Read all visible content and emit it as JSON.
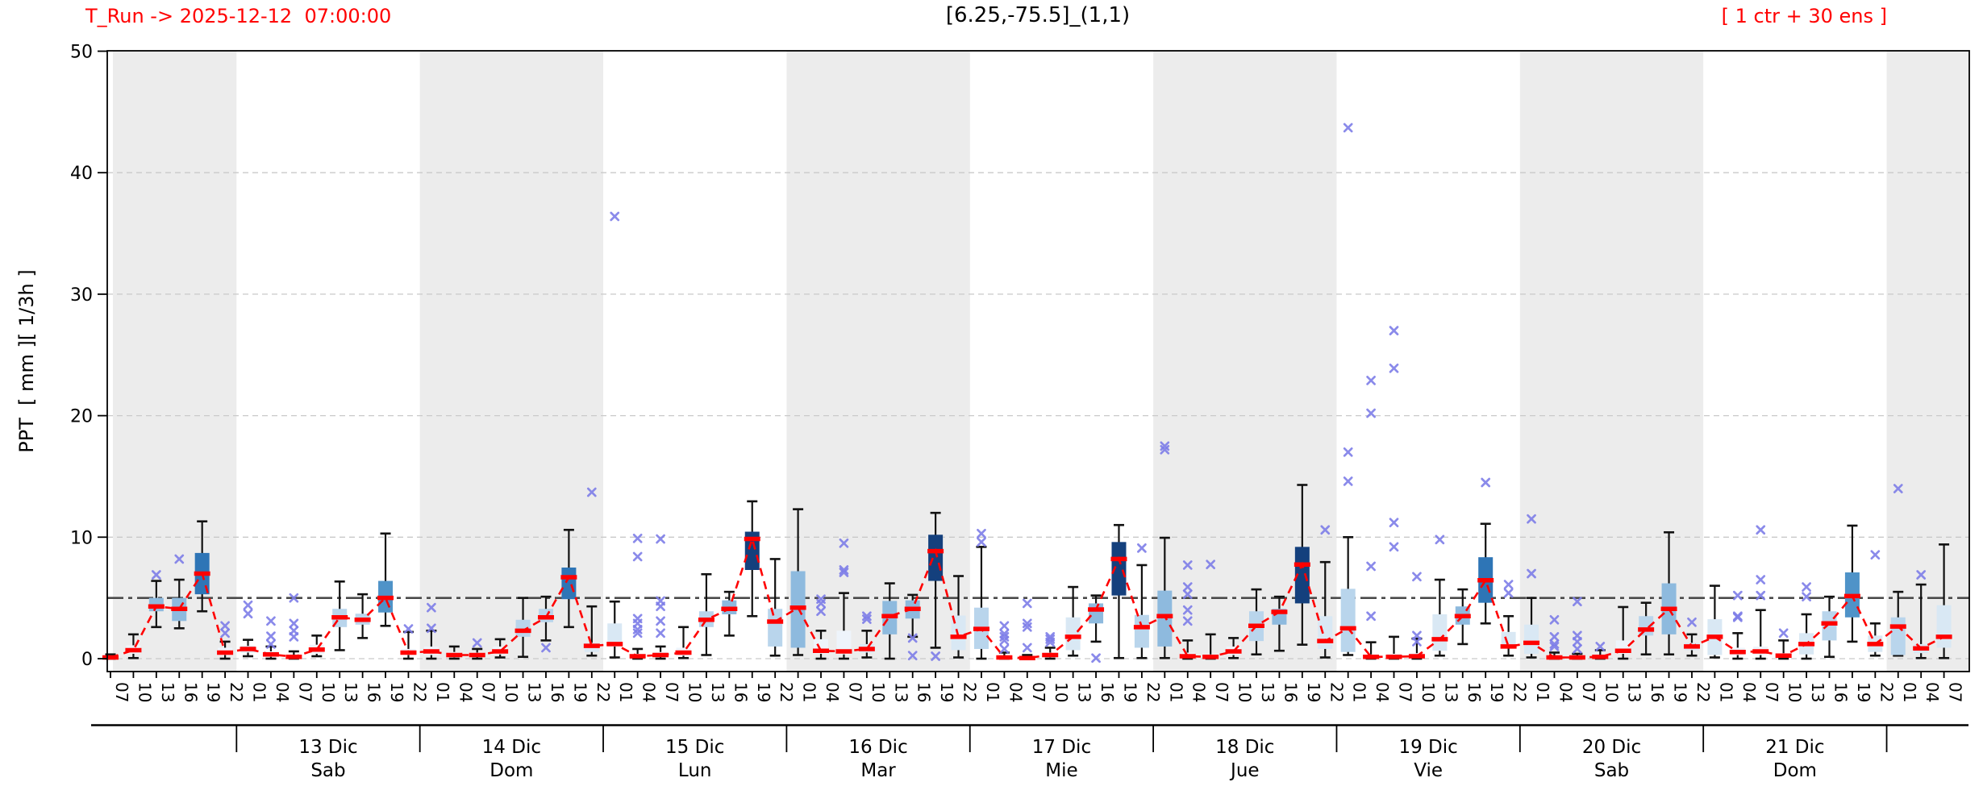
{
  "header": {
    "t_run_label": "T_Run -> 2025-12-12  07:00:00",
    "title": "[6.25,-75.5]_(1,1)",
    "ens_label": "[ 1 ctr + 30 ens ]"
  },
  "chart_data": {
    "type": "boxplot-timeseries",
    "title": "[6.25,-75.5]_(1,1)",
    "t_run_label": "T_Run -> 2025-12-12  07:00:00",
    "ens_label": "[ 1 ctr + 30 ens ]",
    "ylabel": "PPT  [ mm ][ 1/3h ]",
    "ylim": [
      -1.05,
      50.0
    ],
    "yticks": [
      "0",
      "10",
      "20",
      "30",
      "40",
      "50"
    ],
    "grid": "dashed-horizontal",
    "threshold_value": 5,
    "colors": {
      "median_red": "#ff0000",
      "outlier": "#7d7de8",
      "band_gray": "#ececec",
      "grid_gray": "#c9c9c9",
      "threshold_gray": "#4a4a4a",
      "whisker_black": "#111111"
    },
    "box_fill_scale": [
      {
        "min": 7.5,
        "fill": "#14407d"
      },
      {
        "min": 6.0,
        "fill": "#2e75b6"
      },
      {
        "min": 4.8,
        "fill": "#4f93c8"
      },
      {
        "min": 3.5,
        "fill": "#8ebade"
      },
      {
        "min": 2.0,
        "fill": "#b9d5ec"
      },
      {
        "min": 0.8,
        "fill": "#d9e8f4"
      },
      {
        "min": 0.0,
        "fill": "#eef4fb"
      }
    ],
    "days": [
      {
        "label": "13 Dic",
        "sub": "Sab"
      },
      {
        "label": "14 Dic",
        "sub": "Dom"
      },
      {
        "label": "15 Dic",
        "sub": "Lun"
      },
      {
        "label": "16 Dic",
        "sub": "Mar"
      },
      {
        "label": "17 Dic",
        "sub": "Mie"
      },
      {
        "label": "18 Dic",
        "sub": "Jue"
      },
      {
        "label": "19 Dic",
        "sub": "Vie"
      },
      {
        "label": "20 Dic",
        "sub": "Sab"
      },
      {
        "label": "21 Dic",
        "sub": "Dom"
      }
    ],
    "slots": [
      {
        "t": "07",
        "m": 0.1,
        "q1": 0.02,
        "q3": 0.25,
        "lo": 0,
        "hi": 0.35,
        "o": []
      },
      {
        "t": "10",
        "m": 0.7,
        "q1": 0.4,
        "q3": 1.1,
        "lo": 0.05,
        "hi": 2.0,
        "o": []
      },
      {
        "t": "13",
        "m": 4.3,
        "q1": 3.9,
        "q3": 5.0,
        "lo": 2.6,
        "hi": 6.4,
        "o": [
          6.9
        ]
      },
      {
        "t": "16",
        "m": 4.1,
        "q1": 3.1,
        "q3": 5.0,
        "lo": 2.5,
        "hi": 6.5,
        "o": [
          8.2
        ]
      },
      {
        "t": "19",
        "m": 7.0,
        "q1": 5.3,
        "q3": 8.7,
        "lo": 3.9,
        "hi": 11.3,
        "o": []
      },
      {
        "t": "22",
        "m": 0.5,
        "q1": 0.3,
        "q3": 0.9,
        "lo": 0,
        "hi": 1.4,
        "o": [
          2.7,
          2.1
        ]
      },
      {
        "t": "01",
        "m": 0.8,
        "q1": 0.5,
        "q3": 1.05,
        "lo": 0.2,
        "hi": 1.55,
        "o": [
          4.4,
          3.7
        ]
      },
      {
        "t": "04",
        "m": 0.35,
        "q1": 0.15,
        "q3": 0.6,
        "lo": 0,
        "hi": 1.0,
        "o": [
          3.1,
          1.85,
          1.2
        ]
      },
      {
        "t": "07",
        "m": 0.15,
        "q1": 0.05,
        "q3": 0.3,
        "lo": 0,
        "hi": 0.6,
        "o": [
          5.0,
          2.9,
          2.3,
          1.8
        ]
      },
      {
        "t": "10",
        "m": 0.75,
        "q1": 0.4,
        "q3": 1.15,
        "lo": 0.2,
        "hi": 1.9,
        "o": []
      },
      {
        "t": "13",
        "m": 3.4,
        "q1": 2.6,
        "q3": 4.1,
        "lo": 0.7,
        "hi": 6.35,
        "o": []
      },
      {
        "t": "16",
        "m": 3.2,
        "q1": 2.8,
        "q3": 3.7,
        "lo": 1.7,
        "hi": 5.3,
        "o": []
      },
      {
        "t": "19",
        "m": 5.0,
        "q1": 3.8,
        "q3": 6.4,
        "lo": 2.7,
        "hi": 10.3,
        "o": []
      },
      {
        "t": "22",
        "m": 0.5,
        "q1": 0.3,
        "q3": 0.8,
        "lo": 0,
        "hi": 2.2,
        "o": [
          2.45
        ]
      },
      {
        "t": "01",
        "m": 0.6,
        "q1": 0.3,
        "q3": 1.0,
        "lo": 0,
        "hi": 2.3,
        "o": [
          4.2,
          2.5
        ]
      },
      {
        "t": "04",
        "m": 0.3,
        "q1": 0.1,
        "q3": 0.55,
        "lo": 0,
        "hi": 1.0,
        "o": []
      },
      {
        "t": "07",
        "m": 0.3,
        "q1": 0.15,
        "q3": 0.5,
        "lo": 0,
        "hi": 0.8,
        "o": [
          1.3
        ]
      },
      {
        "t": "10",
        "m": 0.6,
        "q1": 0.35,
        "q3": 1.0,
        "lo": 0.1,
        "hi": 1.6,
        "o": []
      },
      {
        "t": "13",
        "m": 2.3,
        "q1": 1.8,
        "q3": 3.2,
        "lo": 0.15,
        "hi": 5.0,
        "o": []
      },
      {
        "t": "16",
        "m": 3.4,
        "q1": 3.0,
        "q3": 4.1,
        "lo": 1.5,
        "hi": 5.1,
        "o": [
          0.9
        ]
      },
      {
        "t": "19",
        "m": 6.7,
        "q1": 4.9,
        "q3": 7.5,
        "lo": 2.6,
        "hi": 10.6,
        "o": []
      },
      {
        "t": "22",
        "m": 1.05,
        "q1": 0.55,
        "q3": 1.3,
        "lo": 0.25,
        "hi": 4.3,
        "o": [
          13.7
        ]
      },
      {
        "t": "01",
        "m": 1.2,
        "q1": 1.0,
        "q3": 2.9,
        "lo": 0.1,
        "hi": 4.7,
        "o": [
          36.4
        ]
      },
      {
        "t": "04",
        "m": 0.2,
        "q1": 0.1,
        "q3": 0.4,
        "lo": 0,
        "hi": 0.8,
        "o": [
          9.9,
          8.4,
          3.3,
          2.9,
          2.4,
          2.1
        ]
      },
      {
        "t": "07",
        "m": 0.3,
        "q1": 0.15,
        "q3": 0.55,
        "lo": 0,
        "hi": 1.0,
        "o": [
          9.85,
          4.75,
          4.3,
          3.1,
          2.1
        ]
      },
      {
        "t": "10",
        "m": 0.5,
        "q1": 0.25,
        "q3": 0.9,
        "lo": 0.05,
        "hi": 2.6,
        "o": []
      },
      {
        "t": "13",
        "m": 3.2,
        "q1": 2.6,
        "q3": 3.9,
        "lo": 0.3,
        "hi": 6.95,
        "o": []
      },
      {
        "t": "16",
        "m": 4.1,
        "q1": 3.65,
        "q3": 4.8,
        "lo": 1.9,
        "hi": 5.5,
        "o": []
      },
      {
        "t": "19",
        "m": 9.85,
        "q1": 7.3,
        "q3": 10.45,
        "lo": 3.5,
        "hi": 12.95,
        "o": []
      },
      {
        "t": "22",
        "m": 3.05,
        "q1": 1.0,
        "q3": 4.1,
        "lo": 0.25,
        "hi": 8.2,
        "o": []
      },
      {
        "t": "01",
        "m": 4.2,
        "q1": 0.9,
        "q3": 7.2,
        "lo": 0.3,
        "hi": 12.3,
        "o": []
      },
      {
        "t": "04",
        "m": 0.65,
        "q1": 0.4,
        "q3": 1.6,
        "lo": 0,
        "hi": 2.3,
        "o": [
          4.9,
          4.55,
          3.9
        ]
      },
      {
        "t": "07",
        "m": 0.6,
        "q1": 0.35,
        "q3": 2.3,
        "lo": 0,
        "hi": 5.4,
        "o": [
          9.5,
          7.3,
          7.1
        ]
      },
      {
        "t": "10",
        "m": 0.8,
        "q1": 0.5,
        "q3": 1.2,
        "lo": 0.1,
        "hi": 2.3,
        "o": [
          3.5,
          3.25
        ]
      },
      {
        "t": "13",
        "m": 3.5,
        "q1": 2.0,
        "q3": 4.75,
        "lo": 0,
        "hi": 6.2,
        "o": []
      },
      {
        "t": "16",
        "m": 4.1,
        "q1": 3.3,
        "q3": 4.8,
        "lo": 1.8,
        "hi": 5.25,
        "o": [
          1.7,
          0.25
        ]
      },
      {
        "t": "19",
        "m": 8.85,
        "q1": 6.4,
        "q3": 10.2,
        "lo": 0.9,
        "hi": 12.0,
        "o": [
          0.2
        ]
      },
      {
        "t": "22",
        "m": 1.8,
        "q1": 0.7,
        "q3": 3.55,
        "lo": 0.1,
        "hi": 6.8,
        "o": []
      },
      {
        "t": "01",
        "m": 2.45,
        "q1": 0.8,
        "q3": 4.2,
        "lo": 0,
        "hi": 9.2,
        "o": [
          10.3,
          9.6
        ]
      },
      {
        "t": "04",
        "m": 0.1,
        "q1": 0.02,
        "q3": 0.2,
        "lo": 0,
        "hi": 0.5,
        "o": [
          2.7,
          2.05,
          1.8,
          1.5,
          0.8
        ]
      },
      {
        "t": "07",
        "m": 0.05,
        "q1": 0,
        "q3": 0.15,
        "lo": 0,
        "hi": 0.3,
        "o": [
          4.55,
          2.9,
          2.6,
          0.9
        ]
      },
      {
        "t": "10",
        "m": 0.3,
        "q1": 0.1,
        "q3": 0.5,
        "lo": 0,
        "hi": 0.9,
        "o": [
          1.8,
          1.6,
          1.35
        ]
      },
      {
        "t": "13",
        "m": 1.8,
        "q1": 0.7,
        "q3": 3.4,
        "lo": 0.25,
        "hi": 5.9,
        "o": []
      },
      {
        "t": "16",
        "m": 4.05,
        "q1": 2.9,
        "q3": 4.55,
        "lo": 1.4,
        "hi": 5.2,
        "o": [
          0.05
        ]
      },
      {
        "t": "19",
        "m": 8.2,
        "q1": 5.2,
        "q3": 9.6,
        "lo": 0.05,
        "hi": 11.0,
        "o": []
      },
      {
        "t": "22",
        "m": 2.6,
        "q1": 0.9,
        "q3": 3.6,
        "lo": 0.05,
        "hi": 7.7,
        "o": [
          9.1
        ]
      },
      {
        "t": "01",
        "m": 3.5,
        "q1": 1.0,
        "q3": 5.6,
        "lo": 0.05,
        "hi": 9.95,
        "o": [
          17.5,
          17.2
        ]
      },
      {
        "t": "04",
        "m": 0.2,
        "q1": 0.1,
        "q3": 0.5,
        "lo": 0,
        "hi": 1.5,
        "o": [
          7.7,
          5.9,
          5.3,
          4.0,
          3.1
        ]
      },
      {
        "t": "07",
        "m": 0.15,
        "q1": 0.05,
        "q3": 0.35,
        "lo": 0,
        "hi": 2.0,
        "o": [
          7.75
        ]
      },
      {
        "t": "10",
        "m": 0.6,
        "q1": 0.3,
        "q3": 1.0,
        "lo": 0.05,
        "hi": 1.7,
        "o": []
      },
      {
        "t": "13",
        "m": 2.7,
        "q1": 1.45,
        "q3": 3.9,
        "lo": 0.35,
        "hi": 5.7,
        "o": []
      },
      {
        "t": "16",
        "m": 3.85,
        "q1": 2.8,
        "q3": 4.1,
        "lo": 0.65,
        "hi": 5.1,
        "o": []
      },
      {
        "t": "19",
        "m": 7.75,
        "q1": 4.55,
        "q3": 9.2,
        "lo": 1.15,
        "hi": 14.3,
        "o": []
      },
      {
        "t": "22",
        "m": 1.45,
        "q1": 0.8,
        "q3": 3.5,
        "lo": 0.1,
        "hi": 7.95,
        "o": [
          10.6
        ]
      },
      {
        "t": "01",
        "m": 2.5,
        "q1": 0.55,
        "q3": 5.75,
        "lo": 0.3,
        "hi": 10.0,
        "o": [
          43.7,
          17.0,
          14.6
        ]
      },
      {
        "t": "04",
        "m": 0.15,
        "q1": 0.05,
        "q3": 0.35,
        "lo": 0,
        "hi": 1.35,
        "o": [
          22.9,
          20.2,
          7.6,
          3.5
        ]
      },
      {
        "t": "07",
        "m": 0.15,
        "q1": 0.05,
        "q3": 0.4,
        "lo": 0,
        "hi": 1.8,
        "o": [
          27.0,
          23.9,
          11.2,
          9.2
        ]
      },
      {
        "t": "10",
        "m": 0.2,
        "q1": 0.1,
        "q3": 0.45,
        "lo": 0,
        "hi": 1.65,
        "o": [
          6.75,
          1.9,
          1.4
        ]
      },
      {
        "t": "13",
        "m": 1.6,
        "q1": 0.65,
        "q3": 3.65,
        "lo": 0.25,
        "hi": 6.5,
        "o": [
          9.8
        ]
      },
      {
        "t": "16",
        "m": 3.5,
        "q1": 2.8,
        "q3": 4.3,
        "lo": 1.2,
        "hi": 5.7,
        "o": []
      },
      {
        "t": "19",
        "m": 6.45,
        "q1": 4.6,
        "q3": 8.35,
        "lo": 2.9,
        "hi": 11.1,
        "o": [
          14.5
        ]
      },
      {
        "t": "22",
        "m": 1.0,
        "q1": 0.9,
        "q3": 2.2,
        "lo": 0.25,
        "hi": 3.5,
        "o": [
          6.1,
          5.4
        ]
      },
      {
        "t": "01",
        "m": 1.3,
        "q1": 0.4,
        "q3": 2.8,
        "lo": 0.1,
        "hi": 5.0,
        "o": [
          11.5,
          7.0
        ]
      },
      {
        "t": "04",
        "m": 0.1,
        "q1": 0.02,
        "q3": 0.25,
        "lo": 0,
        "hi": 0.5,
        "o": [
          3.2,
          1.8,
          1.2,
          1.0
        ]
      },
      {
        "t": "07",
        "m": 0.1,
        "q1": 0.02,
        "q3": 0.25,
        "lo": 0,
        "hi": 0.4,
        "o": [
          4.7,
          1.9,
          1.4,
          0.8
        ]
      },
      {
        "t": "10",
        "m": 0.15,
        "q1": 0.05,
        "q3": 0.3,
        "lo": 0,
        "hi": 0.7,
        "o": [
          1.0
        ]
      },
      {
        "t": "13",
        "m": 0.65,
        "q1": 0.4,
        "q3": 1.5,
        "lo": 0,
        "hi": 4.25,
        "o": []
      },
      {
        "t": "16",
        "m": 2.4,
        "q1": 1.9,
        "q3": 3.5,
        "lo": 0.35,
        "hi": 4.6,
        "o": []
      },
      {
        "t": "19",
        "m": 4.1,
        "q1": 2.0,
        "q3": 6.2,
        "lo": 0.35,
        "hi": 10.4,
        "o": []
      },
      {
        "t": "22",
        "m": 1.0,
        "q1": 0.7,
        "q3": 1.3,
        "lo": 0.25,
        "hi": 2.0,
        "o": [
          3.0
        ]
      },
      {
        "t": "01",
        "m": 1.8,
        "q1": 0.3,
        "q3": 3.25,
        "lo": 0.1,
        "hi": 6.0,
        "o": []
      },
      {
        "t": "04",
        "m": 0.55,
        "q1": 0.3,
        "q3": 0.9,
        "lo": 0,
        "hi": 2.1,
        "o": [
          5.2,
          3.5,
          3.4
        ]
      },
      {
        "t": "07",
        "m": 0.6,
        "q1": 0.3,
        "q3": 1.0,
        "lo": 0,
        "hi": 4.0,
        "o": [
          10.6,
          6.5,
          5.2
        ]
      },
      {
        "t": "10",
        "m": 0.25,
        "q1": 0.1,
        "q3": 0.45,
        "lo": 0,
        "hi": 1.5,
        "o": [
          2.1
        ]
      },
      {
        "t": "13",
        "m": 1.2,
        "q1": 0.35,
        "q3": 2.1,
        "lo": 0,
        "hi": 3.65,
        "o": [
          5.9,
          5.1
        ]
      },
      {
        "t": "16",
        "m": 2.9,
        "q1": 1.5,
        "q3": 3.9,
        "lo": 0.15,
        "hi": 5.1,
        "o": []
      },
      {
        "t": "19",
        "m": 5.15,
        "q1": 3.4,
        "q3": 7.1,
        "lo": 1.4,
        "hi": 10.95,
        "o": []
      },
      {
        "t": "22",
        "m": 1.2,
        "q1": 0.55,
        "q3": 1.9,
        "lo": 0.25,
        "hi": 2.9,
        "o": [
          8.55
        ]
      },
      {
        "t": "01",
        "m": 2.65,
        "q1": 0.3,
        "q3": 3.4,
        "lo": 0.25,
        "hi": 5.5,
        "o": [
          14.0
        ]
      },
      {
        "t": "04",
        "m": 0.85,
        "q1": 0.45,
        "q3": 1.2,
        "lo": 0.05,
        "hi": 6.1,
        "o": [
          6.9
        ]
      },
      {
        "t": "07",
        "m": 1.8,
        "q1": 0.9,
        "q3": 4.4,
        "lo": 0.05,
        "hi": 9.4,
        "o": []
      }
    ]
  }
}
